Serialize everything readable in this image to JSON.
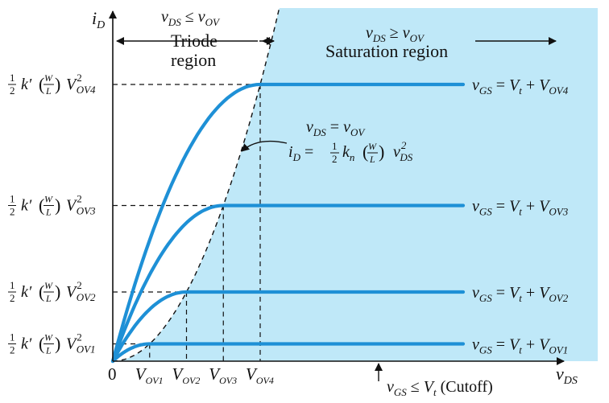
{
  "chart_data": {
    "type": "line",
    "axes": {
      "y_label": {
        "main": "i",
        "sub": "D"
      },
      "x_label": {
        "main": "v",
        "sub": "DS"
      },
      "origin_label": "0"
    },
    "x_ticks": [
      {
        "main": "V",
        "sub": "OV1",
        "x": 1
      },
      {
        "main": "V",
        "sub": "OV2",
        "x": 2
      },
      {
        "main": "V",
        "sub": "OV3",
        "x": 3
      },
      {
        "main": "V",
        "sub": "OV4",
        "x": 4
      }
    ],
    "series": [
      {
        "vov": 1,
        "y_tick": {
          "prefix": "k′",
          "sub": "OV1"
        },
        "label": {
          "lhs": "v",
          "lhs_sub": "GS",
          "eq": " = ",
          "rhs": "V",
          "rhs_sub": "t",
          "plus": " + ",
          "rhs2": "V",
          "rhs2_sub": "OV1"
        }
      },
      {
        "vov": 2,
        "y_tick": {
          "prefix": "k′",
          "sub": "OV2"
        },
        "label": {
          "lhs": "v",
          "lhs_sub": "GS",
          "eq": " = ",
          "rhs": "V",
          "rhs_sub": "t",
          "plus": " + ",
          "rhs2": "V",
          "rhs2_sub": "OV2"
        }
      },
      {
        "vov": 3,
        "y_tick": {
          "prefix": "k′",
          "sub": "OV3"
        },
        "label": {
          "lhs": "v",
          "lhs_sub": "GS",
          "eq": " = ",
          "rhs": "V",
          "rhs_sub": "t",
          "plus": " + ",
          "rhs2": "V",
          "rhs2_sub": "OV3"
        }
      },
      {
        "vov": 4,
        "y_tick": {
          "prefix": "k′",
          "sub": "OV4"
        },
        "label": {
          "lhs": "v",
          "lhs_sub": "GS",
          "eq": " = ",
          "rhs": "V",
          "rhs_sub": "t",
          "plus": " + ",
          "rhs2": "V",
          "rhs2_sub": "OV4"
        }
      }
    ],
    "y_tick_common": {
      "half": "1",
      "two": "2",
      "W": "W",
      "L": "L",
      "V": "V",
      "sq": "2"
    },
    "regions": {
      "triode": {
        "cond_lhs": "v",
        "cond_lhs_sub": "DS",
        "cond_op": " ≤ ",
        "cond_rhs": "v",
        "cond_rhs_sub": "OV",
        "line1": "Triode",
        "line2": "region"
      },
      "saturation": {
        "cond_lhs": "v",
        "cond_lhs_sub": "DS",
        "cond_op": " ≥ ",
        "cond_rhs": "v",
        "cond_rhs_sub": "OV",
        "line1": "Saturation region"
      }
    },
    "boundary_annotation": {
      "line1_lhs": "v",
      "line1_lhs_sub": "DS",
      "line1_eq": " = ",
      "line1_rhs": "v",
      "line1_rhs_sub": "OV",
      "line2_lhs": "i",
      "line2_lhs_sub": "D",
      "line2_eq": " = ",
      "half_num": "1",
      "half_den": "2",
      "k": "k",
      "k_sub": "n",
      "W": "W",
      "L": "L",
      "v": "v",
      "v_sub": "DS",
      "v_sq": "2"
    },
    "cutoff": {
      "lhs": "v",
      "lhs_sub": "GS",
      "op": " ≤ ",
      "rhs": "V",
      "rhs_sub": "t",
      "note": " (Cutoff)"
    },
    "colors": {
      "curve": "#1e90d6",
      "saturation_fill": "#bfe8f8",
      "axis": "#111111"
    }
  }
}
